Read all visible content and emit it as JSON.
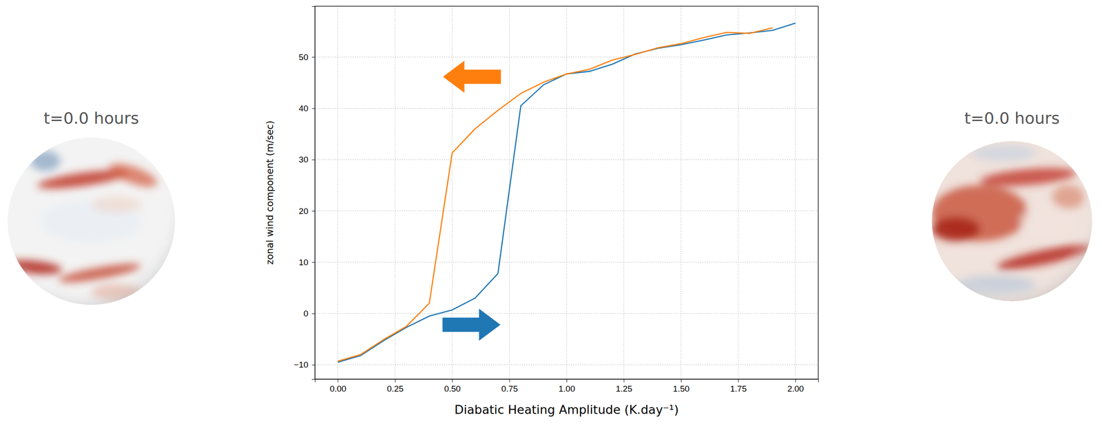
{
  "chart_data": {
    "type": "line",
    "x_label": "Diabatic Heating Amplitude (K.day⁻¹)",
    "y_label": "zonal wind component (m/sec)",
    "annotations": [
      "t=0.0 hours",
      "t=0.0 hours"
    ],
    "xlim": [
      -0.1,
      2.1
    ],
    "ylim": [
      -12.8,
      59.9
    ],
    "xticks": [
      {
        "value": 0,
        "label": "0.00"
      },
      {
        "value": 0.25,
        "label": "0.25"
      },
      {
        "value": 0.5,
        "label": "0.50"
      },
      {
        "value": 0.75,
        "label": "0.75"
      },
      {
        "value": 1,
        "label": "1.00"
      },
      {
        "value": 1.25,
        "label": "1.25"
      },
      {
        "value": 1.5,
        "label": "1.50"
      },
      {
        "value": 1.75,
        "label": "1.75"
      },
      {
        "value": 2,
        "label": "2.00"
      }
    ],
    "yticks": [
      {
        "value": -10,
        "label": "−10"
      },
      0,
      10,
      20,
      30,
      40,
      50
    ],
    "grid": true,
    "series": [
      {
        "color": "#1f77b4",
        "x": [
          0,
          0.1,
          0.2,
          0.3,
          0.4,
          0.5,
          0.6,
          0.7,
          0.8,
          0.9,
          1.0,
          1.1,
          1.2,
          1.3,
          1.4,
          1.5,
          1.6,
          1.7,
          1.8,
          1.9,
          2.0
        ],
        "values": [
          -9.5,
          -8.2,
          -5.3,
          -2.7,
          -0.5,
          0.7,
          3.0,
          7.8,
          40.5,
          44.6,
          46.7,
          47.2,
          48.6,
          50.6,
          51.7,
          52.4,
          53.3,
          54.3,
          54.7,
          55.2,
          56.6
        ]
      },
      {
        "color": "#ff7f0e",
        "x": [
          0,
          0.1,
          0.2,
          0.3,
          0.4,
          0.5,
          0.6,
          0.7,
          0.8,
          0.9,
          1.0,
          1.1,
          1.2,
          1.3,
          1.4,
          1.5,
          1.6,
          1.7,
          1.8,
          1.9
        ],
        "values": [
          -9.3,
          -8.0,
          -5.1,
          -2.5,
          2.0,
          31.3,
          36.0,
          39.6,
          42.9,
          45.1,
          46.7,
          47.6,
          49.4,
          50.5,
          51.8,
          52.6,
          53.8,
          54.8,
          54.6,
          55.7
        ]
      }
    ]
  }
}
